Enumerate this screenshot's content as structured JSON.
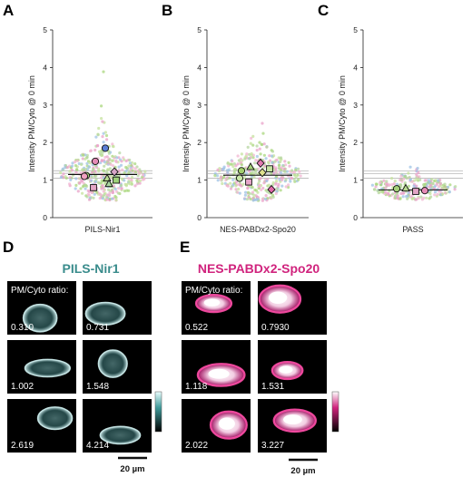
{
  "chart_data": [
    {
      "panel": "A",
      "type": "scatter",
      "category": "PILS-Nir1",
      "ylabel": "Intensity PM/Cyto @ 0 min",
      "ylim": [
        0,
        5
      ],
      "yticks": [
        0,
        1,
        2,
        3,
        4,
        5
      ],
      "mean": 1.15,
      "ci_lines": [
        1.05,
        1.18,
        1.25
      ],
      "cloud": {
        "center": 1.15,
        "spread": 0.35,
        "max": 4.2,
        "min": 0.45,
        "count": 420
      },
      "replicate_means": [
        {
          "shape": "circle",
          "color": "#5b7fd6",
          "value": 1.85
        },
        {
          "shape": "circle",
          "color": "#e58bb6",
          "value": 1.5
        },
        {
          "shape": "diamond",
          "color": "#d9a6c8",
          "value": 1.22
        },
        {
          "shape": "circle",
          "color": "#a4d07a",
          "value": 1.12
        },
        {
          "shape": "triangle",
          "color": "#b7db8f",
          "value": 1.05
        },
        {
          "shape": "square",
          "color": "#e4a6c6",
          "value": 0.8
        },
        {
          "shape": "square",
          "color": "#9fd27a",
          "value": 1.0
        },
        {
          "shape": "circle",
          "color": "#f0a0c0",
          "value": 1.1
        },
        {
          "shape": "triangle",
          "color": "#a8d6a0",
          "value": 0.9
        }
      ]
    },
    {
      "panel": "B",
      "type": "scatter",
      "category": "NES-PABDx2-Spo20",
      "ylabel": "Intensity PM/Cyto @ 0 min",
      "ylim": [
        0,
        5
      ],
      "yticks": [
        0,
        1,
        2,
        3,
        4,
        5
      ],
      "mean": 1.13,
      "ci_lines": [
        1.05,
        1.17,
        1.24
      ],
      "cloud": {
        "center": 1.15,
        "spread": 0.33,
        "max": 3.2,
        "min": 0.45,
        "count": 360
      },
      "replicate_means": [
        {
          "shape": "diamond",
          "color": "#e27ab0",
          "value": 1.45
        },
        {
          "shape": "triangle",
          "color": "#a6d27a",
          "value": 1.35
        },
        {
          "shape": "square",
          "color": "#c4e3a1",
          "value": 1.3
        },
        {
          "shape": "circle",
          "color": "#a3cf6f",
          "value": 1.25
        },
        {
          "shape": "diamond",
          "color": "#dfe08f",
          "value": 1.2
        },
        {
          "shape": "square",
          "color": "#e7a6c9",
          "value": 0.95
        },
        {
          "shape": "diamond",
          "color": "#e06aa8",
          "value": 0.75
        },
        {
          "shape": "circle",
          "color": "#c9e7a8",
          "value": 1.05
        }
      ]
    },
    {
      "panel": "C",
      "type": "scatter",
      "category": "PASS",
      "ylabel": "Intensity PM/Cyto @ 0 min",
      "ylim": [
        0,
        5
      ],
      "yticks": [
        0,
        1,
        2,
        3,
        4,
        5
      ],
      "mean": 0.74,
      "ci_lines": [
        1.05,
        1.17,
        1.24
      ],
      "cloud": {
        "center": 0.8,
        "spread": 0.17,
        "max": 1.85,
        "min": 0.48,
        "count": 260
      },
      "replicate_means": [
        {
          "shape": "square",
          "color": "#e3a4c5",
          "value": 0.7
        },
        {
          "shape": "triangle",
          "color": "#b7d98f",
          "value": 0.78
        },
        {
          "shape": "circle",
          "color": "#e58bb6",
          "value": 0.72
        },
        {
          "shape": "circle",
          "color": "#a4d07a",
          "value": 0.77
        }
      ]
    }
  ],
  "panels": {
    "A": "A",
    "B": "B",
    "C": "C",
    "D": "D",
    "E": "E"
  },
  "images": {
    "D": {
      "title": "PILS-Nir1",
      "header": "PM/Cyto ratio:",
      "ratios": [
        "0.310",
        "0.731",
        "1.002",
        "1.548",
        "2.619",
        "4.214"
      ],
      "scalebar": "20 µm",
      "color": "#3a8c8c"
    },
    "E": {
      "title": "NES-PABDx2-Spo20",
      "header": "PM/Cyto ratio:",
      "ratios": [
        "0.522",
        "0.7930",
        "1.118",
        "1.531",
        "2.022",
        "3.227"
      ],
      "scalebar": "20 µm",
      "color": "#d0237d"
    }
  }
}
